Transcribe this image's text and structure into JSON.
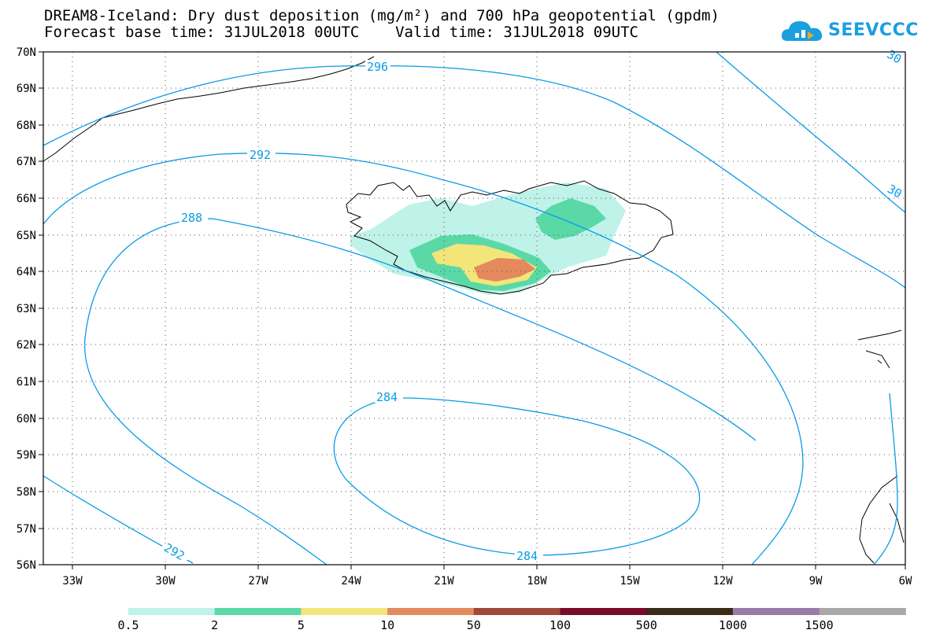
{
  "title": {
    "line1": "DREAM8-Iceland: Dry dust deposition (mg/m²) and 700 hPa geopotential (gpdm)",
    "line2": "Forecast base time: 31JUL2018 00UTC    Valid time: 31JUL2018 09UTC"
  },
  "logo": {
    "text": "SEEVCCC",
    "icon": "cloud-icon"
  },
  "map": {
    "lat_labels": [
      "70N",
      "69N",
      "68N",
      "67N",
      "66N",
      "65N",
      "64N",
      "63N",
      "62N",
      "61N",
      "60N",
      "59N",
      "58N",
      "57N",
      "56N"
    ],
    "lon_labels": [
      "33W",
      "30W",
      "27W",
      "24W",
      "21W",
      "18W",
      "15W",
      "12W",
      "9W",
      "6W"
    ],
    "contour_labels": [
      "296",
      "30",
      "292",
      "30",
      "288",
      "284",
      "284",
      "292"
    ],
    "contour_color": "#0a9be6",
    "dust_colors": [
      "#bff2e8",
      "#5ad9a7",
      "#f2e57a",
      "#e58a5c"
    ]
  },
  "colorbar": {
    "labels": [
      "0.5",
      "2",
      "5",
      "10",
      "50",
      "100",
      "500",
      "1000",
      "1500"
    ],
    "colors": [
      "#bff2e8",
      "#5ad9a7",
      "#f2e57a",
      "#e58a5c",
      "#a0483a",
      "#7a0a2a",
      "#3a2a18",
      "#9a7aa6",
      "#a8a8a8"
    ]
  }
}
